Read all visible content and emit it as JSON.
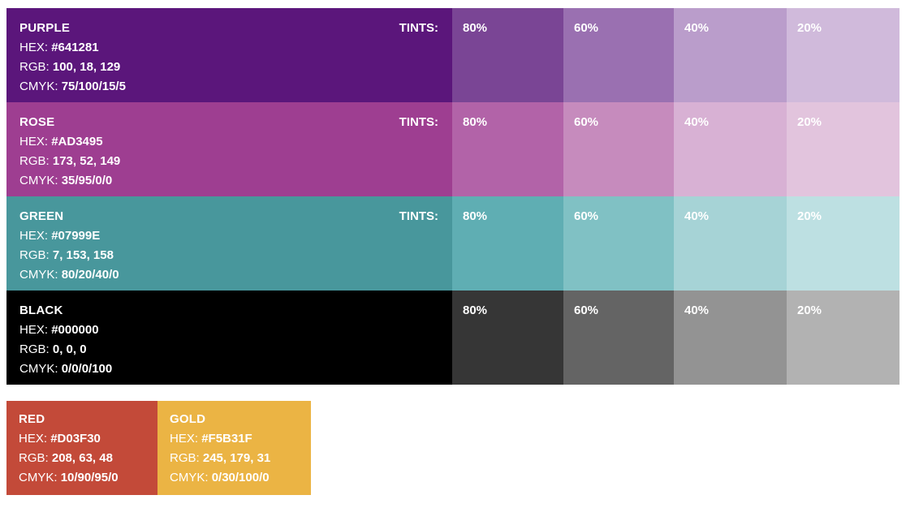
{
  "palette": [
    {
      "name": "PURPLE",
      "hex_label": "HEX:",
      "hex": "#641281",
      "rgb_label": "RGB:",
      "rgb": "100, 18, 129",
      "cmyk_label": "CMYK:",
      "cmyk": "75/100/15/5",
      "tints_label": "TINTS:",
      "color": "#5b167b",
      "tints": [
        {
          "label": "80%",
          "color": "#7a4595"
        },
        {
          "label": "60%",
          "color": "#9a70b1"
        },
        {
          "label": "40%",
          "color": "#ba9dcb"
        },
        {
          "label": "20%",
          "color": "#d0badb"
        }
      ]
    },
    {
      "name": "ROSE",
      "hex_label": "HEX:",
      "hex": "#AD3495",
      "rgb_label": "RGB:",
      "rgb": "173, 52, 149",
      "cmyk_label": "CMYK:",
      "cmyk": "35/95/0/0",
      "tints_label": "TINTS:",
      "color": "#9e3e91",
      "tints": [
        {
          "label": "80%",
          "color": "#b263a8"
        },
        {
          "label": "60%",
          "color": "#c68bbd"
        },
        {
          "label": "40%",
          "color": "#d8b1d4"
        },
        {
          "label": "20%",
          "color": "#e2c4dd"
        }
      ]
    },
    {
      "name": "GREEN",
      "hex_label": "HEX:",
      "hex": "#07999E",
      "rgb_label": "RGB:",
      "rgb": "7, 153, 158",
      "cmyk_label": "CMYK:",
      "cmyk": "80/20/40/0",
      "tints_label": "TINTS:",
      "color": "#48979c",
      "tints": [
        {
          "label": "80%",
          "color": "#5faeb3"
        },
        {
          "label": "60%",
          "color": "#80c1c4"
        },
        {
          "label": "40%",
          "color": "#a6d3d6"
        },
        {
          "label": "20%",
          "color": "#bde0e2"
        }
      ]
    },
    {
      "name": "BLACK",
      "hex_label": "HEX:",
      "hex": "#000000",
      "rgb_label": "RGB:",
      "rgb": "0, 0, 0",
      "cmyk_label": "CMYK:",
      "cmyk": "0/0/0/100",
      "tints_label": "",
      "color": "#000000",
      "tints": [
        {
          "label": "80%",
          "color": "#363636"
        },
        {
          "label": "60%",
          "color": "#646464"
        },
        {
          "label": "40%",
          "color": "#939393"
        },
        {
          "label": "20%",
          "color": "#b2b2b2"
        }
      ]
    }
  ],
  "accents": [
    {
      "name": "RED",
      "hex_label": "HEX:",
      "hex": "#D03F30",
      "rgb_label": "RGB:",
      "rgb": "208, 63, 48",
      "cmyk_label": "CMYK:",
      "cmyk": "10/90/95/0",
      "color": "#c34a39"
    },
    {
      "name": "GOLD",
      "hex_label": "HEX:",
      "hex": "#F5B31F",
      "rgb_label": "RGB:",
      "rgb": "245, 179, 31",
      "cmyk_label": "CMYK:",
      "cmyk": "0/30/100/0",
      "color": "#ebb444"
    }
  ]
}
